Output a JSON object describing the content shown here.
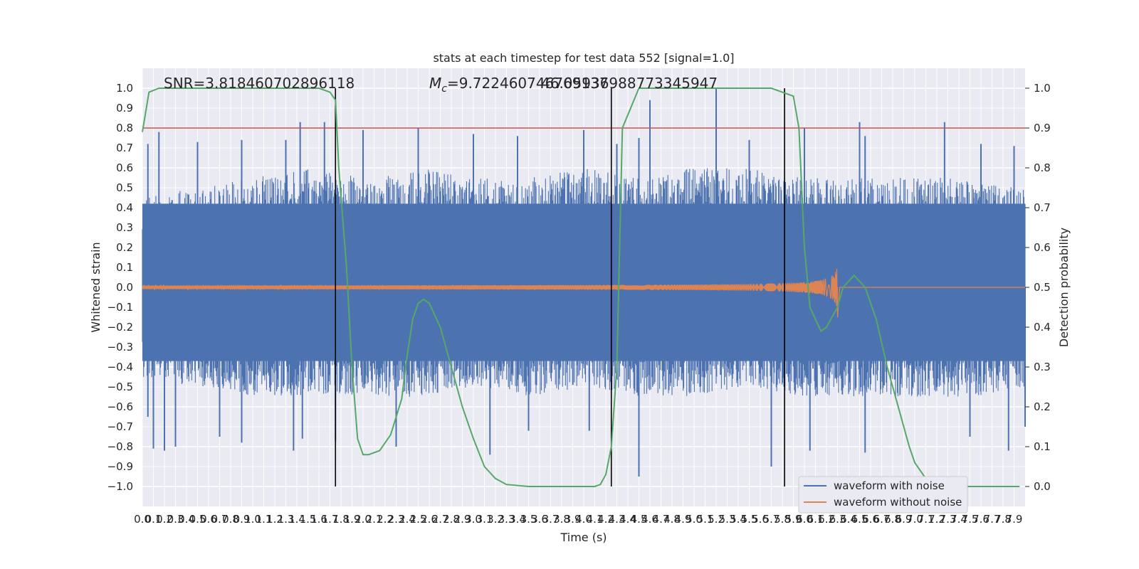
{
  "chart_data": {
    "type": "line",
    "title": "stats at each timestep for test data 552 [signal=1.0]",
    "xlabel": "Time (s)",
    "ylabel_left": "Whitened strain",
    "ylabel_right": "Detection probability",
    "xlim": [
      0.0,
      8.0
    ],
    "ylim_left": [
      -1.1,
      1.1
    ],
    "ylim_right": [
      -0.05,
      1.05
    ],
    "grid": true,
    "legend_position": "lower-right",
    "x_ticks": [
      "0.0",
      "0.1",
      "0.2",
      "0.3",
      "0.4",
      "0.5",
      "0.6",
      "0.7",
      "0.8",
      "0.9",
      "1.0",
      "1.1",
      "1.2",
      "1.3",
      "1.4",
      "1.5",
      "1.6",
      "1.7",
      "1.8",
      "1.9",
      "2.0",
      "2.1",
      "2.2",
      "2.3",
      "2.4",
      "2.5",
      "2.6",
      "2.7",
      "2.8",
      "2.9",
      "3.0",
      "3.1",
      "3.2",
      "3.3",
      "3.4",
      "3.5",
      "3.6",
      "3.7",
      "3.8",
      "3.9",
      "4.0",
      "4.1",
      "4.2",
      "4.3",
      "4.4",
      "4.5",
      "4.6",
      "4.7",
      "4.8",
      "4.9",
      "5.0",
      "5.1",
      "5.2",
      "5.3",
      "5.4",
      "5.5",
      "5.6",
      "5.7",
      "5.8",
      "5.9",
      "6.0",
      "6.1",
      "6.2",
      "6.3",
      "6.4",
      "6.5",
      "6.6",
      "6.7",
      "6.8",
      "6.9",
      "7.0",
      "7.1",
      "7.2",
      "7.3",
      "7.4",
      "7.5",
      "7.6",
      "7.7",
      "7.8",
      "7.9"
    ],
    "y_ticks_left": [
      "1.0",
      "0.9",
      "0.8",
      "0.7",
      "0.6",
      "0.5",
      "0.4",
      "0.3",
      "0.2",
      "0.1",
      "0.0",
      "−0.1",
      "−0.2",
      "−0.3",
      "−0.4",
      "−0.5",
      "−0.6",
      "−0.7",
      "−0.8",
      "−0.9",
      "−1.0"
    ],
    "y_ticks_right": [
      "1.0",
      "0.9",
      "0.8",
      "0.7",
      "0.6",
      "0.5",
      "0.4",
      "0.3",
      "0.2",
      "0.1",
      "0.0"
    ],
    "annotations": {
      "snr": "SNR=3.818460702896118",
      "mc_symbol": "M",
      "mc_subscript": "c",
      "mc_value": "=9.722460746769137",
      "overlap_value": "46.05936988773345947"
    },
    "threshold_line": {
      "y": 0.9,
      "color": "#c44e52"
    },
    "vertical_markers_x": [
      1.75,
      4.25,
      5.82
    ],
    "series": [
      {
        "name": "waveform with noise",
        "color": "#4c72b0",
        "envelope_x": [
          0.0,
          0.5,
          1.0,
          1.5,
          2.0,
          2.5,
          3.0,
          3.5,
          4.0,
          4.5,
          5.0,
          5.5,
          6.0,
          6.5,
          7.0,
          7.5,
          8.0
        ],
        "envelope_upper": [
          0.45,
          0.5,
          0.55,
          0.6,
          0.55,
          0.6,
          0.55,
          0.55,
          0.6,
          0.55,
          0.6,
          0.6,
          0.55,
          0.55,
          0.55,
          0.55,
          0.5
        ],
        "envelope_lower": [
          -0.45,
          -0.5,
          -0.55,
          -0.55,
          -0.55,
          -0.55,
          -0.5,
          -0.55,
          -0.5,
          -0.55,
          -0.55,
          -0.5,
          -0.55,
          -0.55,
          -0.55,
          -0.55,
          -0.5
        ],
        "spikes_up": [
          [
            0.05,
            0.72
          ],
          [
            0.15,
            0.78
          ],
          [
            0.5,
            0.73
          ],
          [
            0.9,
            0.74
          ],
          [
            1.3,
            0.74
          ],
          [
            1.43,
            0.83
          ],
          [
            1.65,
            0.83
          ],
          [
            2.0,
            0.79
          ],
          [
            2.5,
            0.8
          ],
          [
            3.0,
            0.77
          ],
          [
            3.4,
            0.76
          ],
          [
            4.0,
            0.79
          ],
          [
            4.3,
            0.72
          ],
          [
            4.5,
            0.75
          ],
          [
            4.6,
            0.94
          ],
          [
            5.2,
            1.0
          ],
          [
            5.5,
            0.74
          ],
          [
            6.0,
            0.8
          ],
          [
            6.5,
            0.8
          ],
          [
            6.55,
            0.76
          ],
          [
            6.5,
            0.83
          ],
          [
            7.27,
            0.83
          ],
          [
            7.6,
            0.72
          ],
          [
            7.9,
            0.71
          ]
        ],
        "spikes_down": [
          [
            0.05,
            -0.65
          ],
          [
            0.1,
            -0.81
          ],
          [
            0.2,
            -0.82
          ],
          [
            0.3,
            -0.8
          ],
          [
            0.7,
            -0.75
          ],
          [
            0.9,
            -0.78
          ],
          [
            1.37,
            -0.82
          ],
          [
            1.45,
            -0.76
          ],
          [
            1.75,
            -0.77
          ],
          [
            2.3,
            -0.8
          ],
          [
            3.15,
            -0.84
          ],
          [
            3.5,
            -0.72
          ],
          [
            4.05,
            -0.72
          ],
          [
            4.5,
            -0.95
          ],
          [
            5.7,
            -0.9
          ],
          [
            6.05,
            -0.82
          ],
          [
            6.55,
            -0.83
          ],
          [
            7.5,
            -0.75
          ],
          [
            7.85,
            -0.82
          ],
          [
            8.0,
            -0.7
          ]
        ]
      },
      {
        "name": "waveform without noise",
        "color": "#dd8452",
        "chirp_start": 0.0,
        "chirp_merger": 6.3,
        "amplitude_start": 0.005,
        "amplitude_peak": 0.12
      },
      {
        "name": "",
        "color": "#55a868",
        "axis": "right",
        "x": [
          0.0,
          0.06,
          0.15,
          0.4,
          0.8,
          1.2,
          1.6,
          1.7,
          1.75,
          1.78,
          1.85,
          1.9,
          1.95,
          2.0,
          2.05,
          2.15,
          2.25,
          2.35,
          2.4,
          2.45,
          2.5,
          2.55,
          2.6,
          2.7,
          2.8,
          2.9,
          3.0,
          3.1,
          3.2,
          3.3,
          3.5,
          3.8,
          4.0,
          4.1,
          4.15,
          4.2,
          4.25,
          4.3,
          4.35,
          4.5,
          5.0,
          5.5,
          5.7,
          5.8,
          5.9,
          5.95,
          6.0,
          6.05,
          6.1,
          6.15,
          6.2,
          6.3,
          6.35,
          6.45,
          6.55,
          6.65,
          6.75,
          6.85,
          6.95,
          7.0,
          7.1,
          7.3,
          7.6,
          7.95
        ],
        "y": [
          0.89,
          0.99,
          1.0,
          1.0,
          1.0,
          1.0,
          1.0,
          0.99,
          0.97,
          0.8,
          0.55,
          0.3,
          0.12,
          0.08,
          0.08,
          0.09,
          0.13,
          0.22,
          0.33,
          0.42,
          0.46,
          0.47,
          0.46,
          0.4,
          0.3,
          0.2,
          0.12,
          0.05,
          0.02,
          0.005,
          0.0,
          0.0,
          0.0,
          0.0,
          0.005,
          0.03,
          0.1,
          0.3,
          0.9,
          1.0,
          1.0,
          1.0,
          1.0,
          0.99,
          0.98,
          0.9,
          0.6,
          0.45,
          0.42,
          0.39,
          0.4,
          0.45,
          0.5,
          0.53,
          0.5,
          0.42,
          0.3,
          0.2,
          0.1,
          0.06,
          0.02,
          0.0,
          0.0,
          0.0
        ]
      }
    ]
  }
}
